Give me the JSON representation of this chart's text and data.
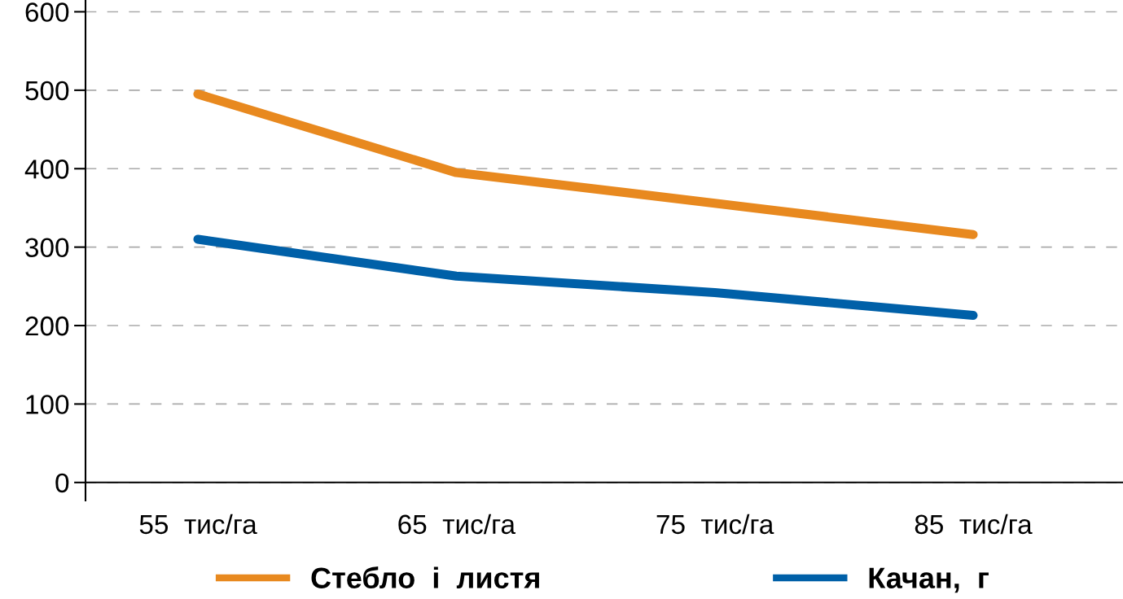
{
  "chart_data": {
    "type": "line",
    "categories": [
      "55  тис/га",
      "65  тис/га",
      "75  тис/га",
      "85  тис/га"
    ],
    "series": [
      {
        "name": "Стебло  і  листя",
        "color": "#e8891f",
        "values": [
          495,
          395,
          356,
          316
        ]
      },
      {
        "name": "Качан,  г",
        "color": "#0060a8",
        "values": [
          310,
          263,
          242,
          213
        ]
      }
    ],
    "ylim": [
      -23,
      615
    ],
    "yticks": [
      0,
      100,
      200,
      300,
      400,
      500,
      600
    ],
    "grid": "y",
    "legend": "bottom",
    "marker": "none",
    "line_style": "solid"
  }
}
